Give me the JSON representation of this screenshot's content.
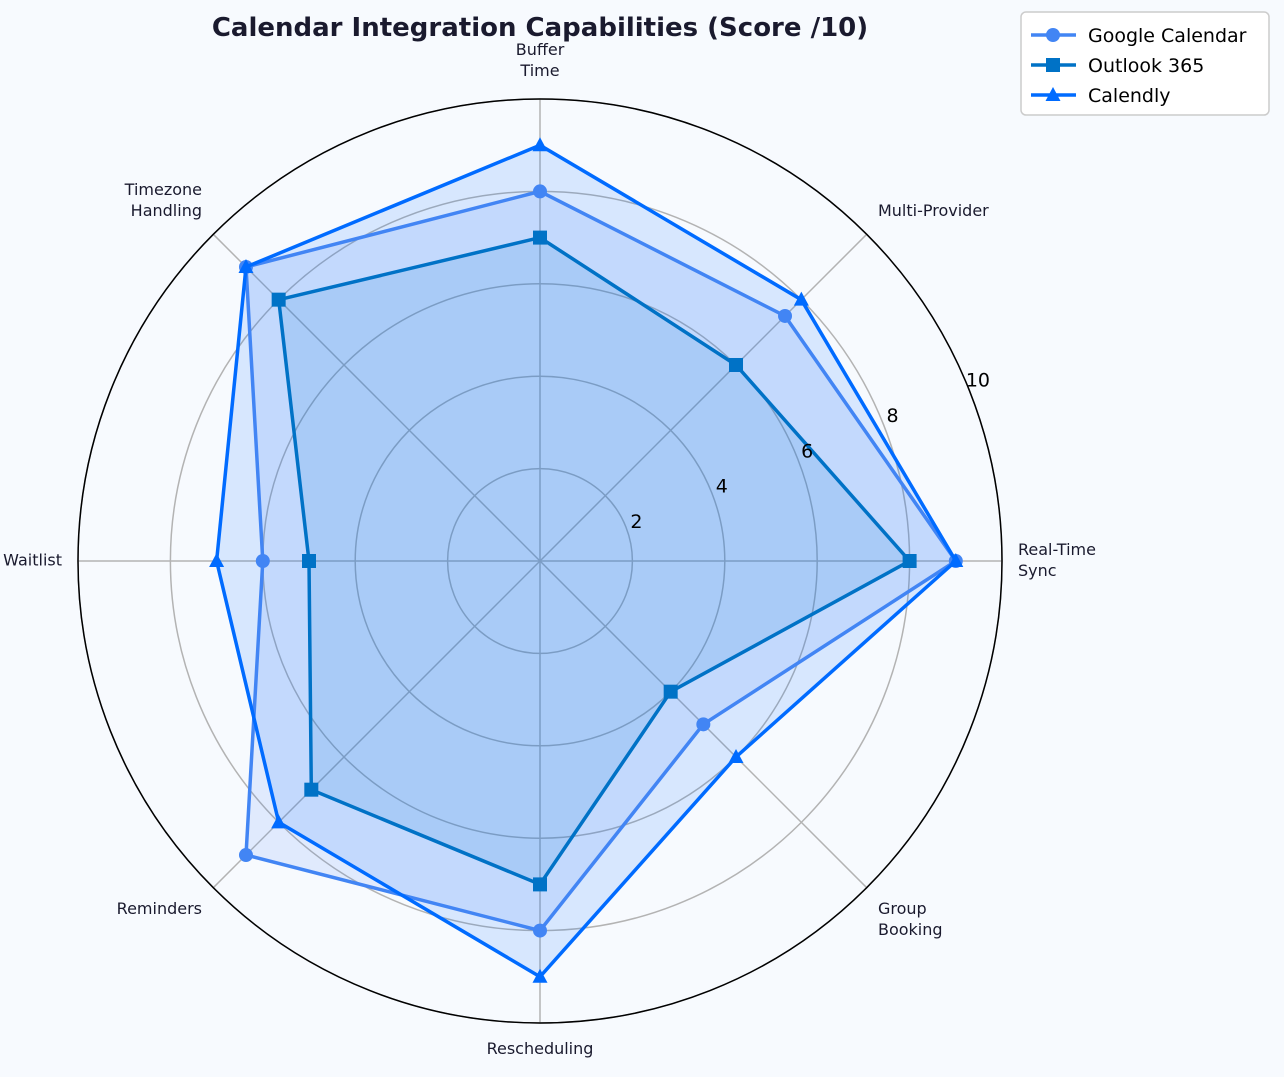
{
  "chart_data": {
    "type": "radar",
    "title": "Calendar Integration Capabilities (Score /10)",
    "axes": [
      [
        "Real-Time",
        "Sync"
      ],
      [
        "Multi-Provider"
      ],
      [
        "Buffer",
        "Time"
      ],
      [
        "Timezone",
        "Handling"
      ],
      [
        "Waitlist"
      ],
      [
        "Reminders"
      ],
      [
        "Rescheduling"
      ],
      [
        "Group",
        "Booking"
      ]
    ],
    "rlim": [
      0,
      10
    ],
    "rticks": [
      "2",
      "4",
      "6",
      "8",
      "10"
    ],
    "grid": true,
    "legend_position": "top-right",
    "series": [
      {
        "name": "Google Calendar",
        "values": [
          9.0,
          7.5,
          8.0,
          9.0,
          6.0,
          9.0,
          8.0,
          5.0
        ],
        "color": "#4285f4",
        "marker": "circle"
      },
      {
        "name": "Outlook 365",
        "values": [
          8.0,
          6.0,
          7.0,
          8.0,
          5.0,
          7.0,
          7.0,
          4.0
        ],
        "color": "#0072c6",
        "marker": "square"
      },
      {
        "name": "Calendly",
        "values": [
          9.0,
          8.0,
          9.0,
          9.0,
          7.0,
          8.0,
          9.0,
          6.0
        ],
        "color": "#006bff",
        "marker": "triangle"
      }
    ]
  }
}
